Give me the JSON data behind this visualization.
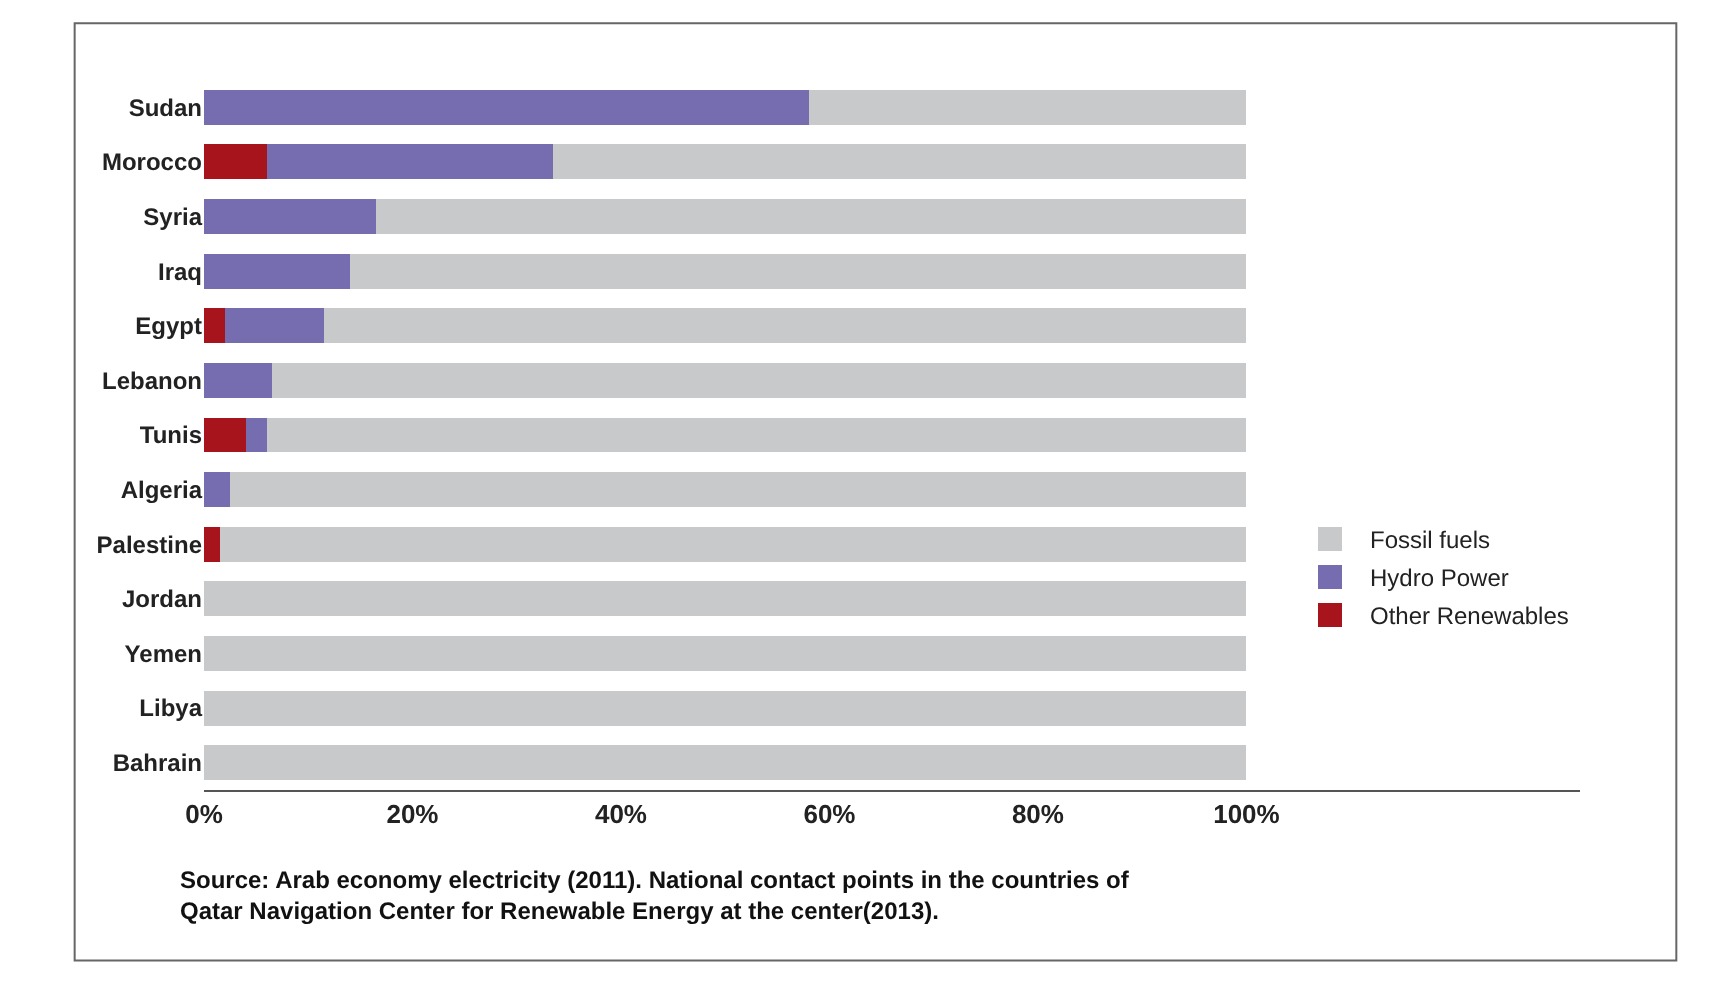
{
  "chart_data": {
    "type": "bar",
    "orientation": "horizontal",
    "stacked": true,
    "categories": [
      "Sudan",
      "Morocco",
      "Syria",
      "Iraq",
      "Egypt",
      "Lebanon",
      "Tunis",
      "Algeria",
      "Palestine",
      "Jordan",
      "Yemen",
      "Libya",
      "Bahrain"
    ],
    "series": [
      {
        "name": "Other Renewables",
        "color": "#a8141c",
        "values": [
          0,
          6,
          0,
          0,
          2,
          0,
          4,
          0,
          1.5,
          0,
          0,
          0,
          0
        ]
      },
      {
        "name": "Hydro Power",
        "color": "#766db0",
        "values": [
          58,
          27.5,
          16.5,
          14,
          9.5,
          6.5,
          2,
          2.5,
          0,
          0,
          0,
          0,
          0
        ]
      },
      {
        "name": "Fossil fuels",
        "color": "#c8c9ca",
        "values": [
          42,
          66.5,
          83.5,
          86,
          88.5,
          93.5,
          94,
          97.5,
          98.5,
          100,
          100,
          100,
          100
        ]
      }
    ],
    "xlim": [
      0,
      132
    ],
    "xticks": [
      {
        "value": 0,
        "label": "0%"
      },
      {
        "value": 20,
        "label": "20%"
      },
      {
        "value": 40,
        "label": "40%"
      },
      {
        "value": 60,
        "label": "60%"
      },
      {
        "value": 80,
        "label": "80%"
      },
      {
        "value": 100,
        "label": "100%"
      }
    ],
    "legend": "right",
    "annotations": [
      "Source: Arab economy electricity (2011). National contact points in the countries of\nQatar Navigation Center for Renewable Energy at the center(2013)."
    ]
  }
}
